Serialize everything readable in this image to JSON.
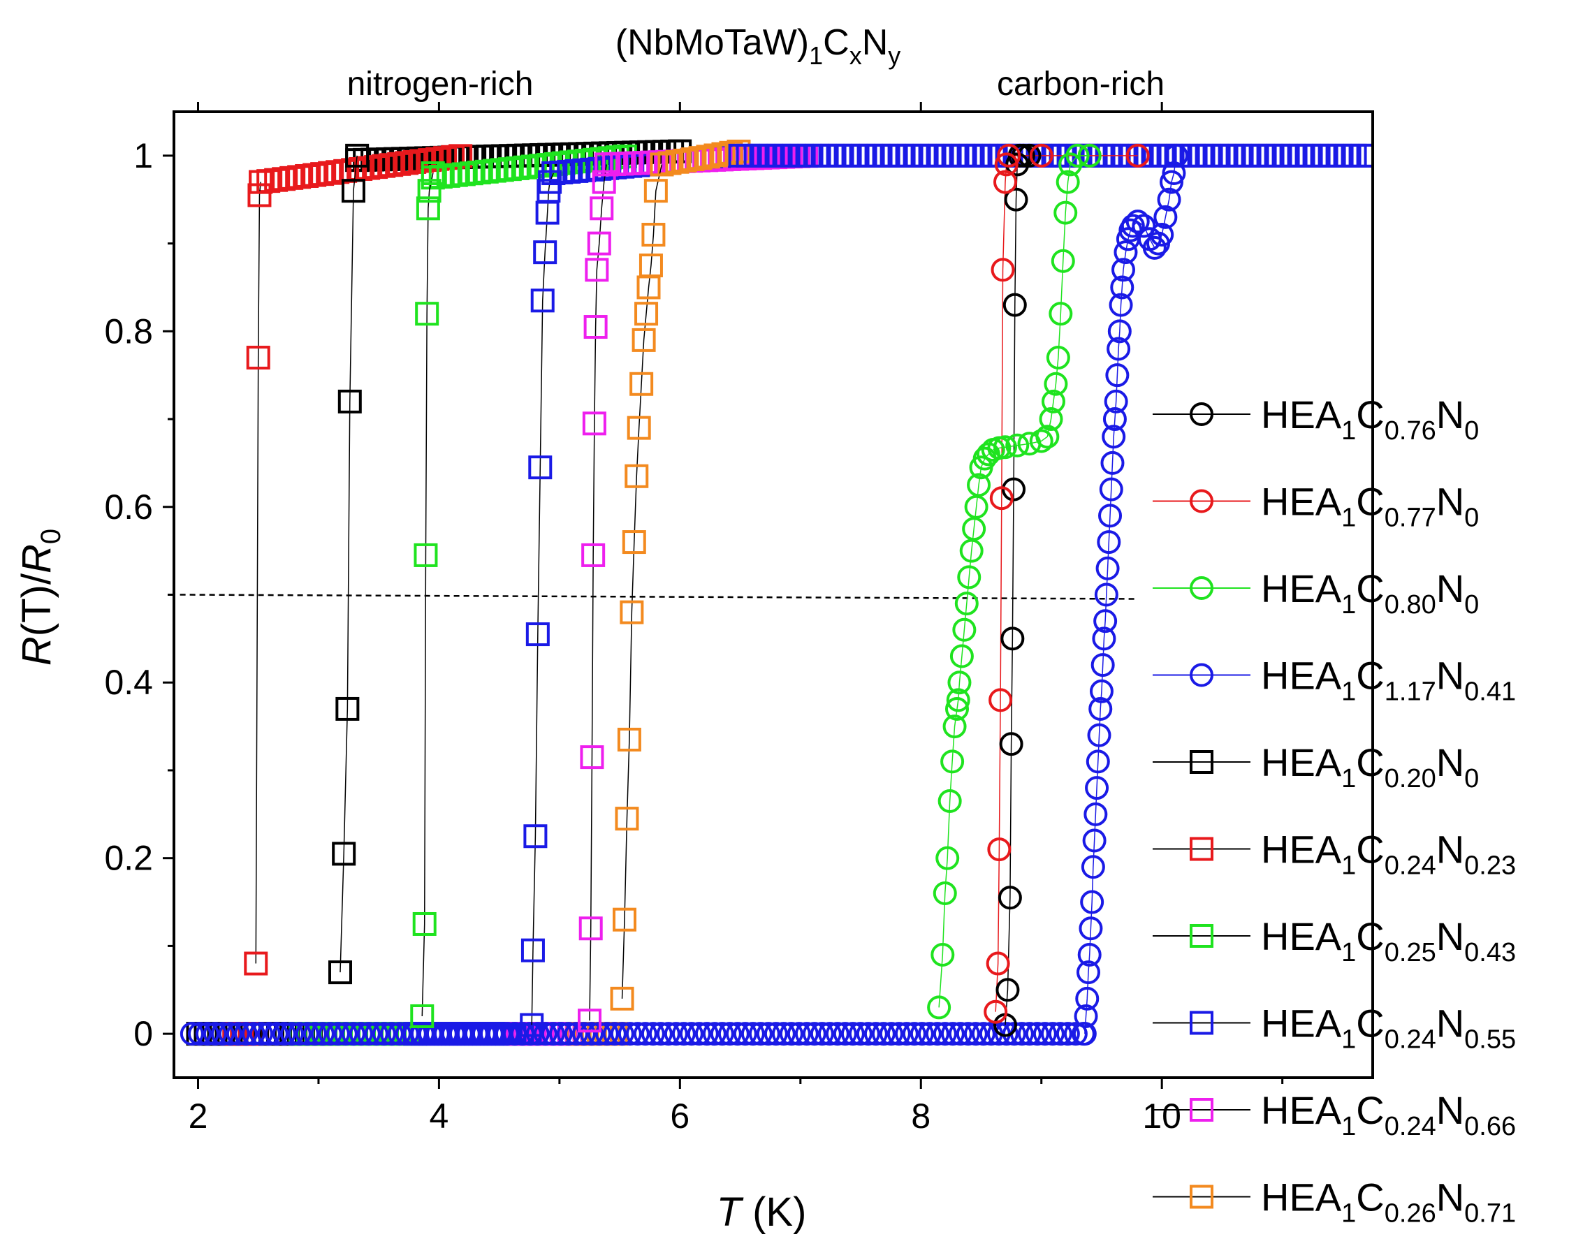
{
  "chart_data": {
    "type": "scatter",
    "title": {
      "base": "(NbMoTaW)",
      "s1": "1",
      "c": "C",
      "sx": "x",
      "n": "N",
      "sy": "y"
    },
    "annotations": {
      "left": "nitrogen-rich",
      "right": "carbon-rich"
    },
    "xlabel": {
      "var": "T",
      "unit": " (K)"
    },
    "ylabel": {
      "var1": "R",
      "mid": "(T)/",
      "var2": "R",
      "sub": "0"
    },
    "xlim": [
      1.8,
      11.75
    ],
    "ylim": [
      -0.05,
      1.05
    ],
    "xticks": [
      2,
      4,
      6,
      8,
      10
    ],
    "yticks": [
      0,
      0.2,
      0.4,
      0.6,
      0.8,
      1
    ],
    "ytick_labels": [
      "0",
      "0.2",
      "0.4",
      "0.6",
      "0.8",
      "1"
    ],
    "reference_line": {
      "y": 0.5,
      "style": "dashed",
      "x_start": 1.85,
      "x_end": 9.8
    },
    "series": [
      {
        "name": "HEA1C0.76N0",
        "label": {
          "c": "0.76",
          "n": "0"
        },
        "marker": "circle",
        "color": "#000000",
        "x": [
          8.7,
          8.72,
          8.74,
          8.75,
          8.76,
          8.77,
          8.78,
          8.79,
          8.8,
          8.82,
          8.85,
          8.9
        ],
        "y": [
          0.01,
          0.05,
          0.155,
          0.33,
          0.45,
          0.62,
          0.83,
          0.95,
          0.99,
          1.0,
          1.0,
          1.0
        ]
      },
      {
        "name": "HEA1C0.77N0",
        "label": {
          "c": "0.77",
          "n": "0"
        },
        "marker": "circle",
        "color": "#e8191c",
        "x": [
          8.62,
          8.64,
          8.65,
          8.66,
          8.67,
          8.68,
          8.7,
          8.71,
          8.73,
          9.0,
          9.4,
          9.8
        ],
        "y": [
          0.025,
          0.08,
          0.21,
          0.38,
          0.61,
          0.87,
          0.97,
          0.99,
          1.0,
          1.0,
          1.0,
          1.0
        ]
      },
      {
        "name": "HEA1C0.80N0",
        "label": {
          "c": "0.80",
          "n": "0"
        },
        "marker": "circle",
        "color": "#1fe31f",
        "x": [
          8.15,
          8.18,
          8.2,
          8.22,
          8.24,
          8.26,
          8.28,
          8.3,
          8.31,
          8.32,
          8.34,
          8.36,
          8.38,
          8.4,
          8.42,
          8.44,
          8.46,
          8.48,
          8.5,
          8.53,
          8.56,
          8.6,
          8.65,
          8.7,
          8.8,
          8.9,
          9.0,
          9.05,
          9.08,
          9.1,
          9.12,
          9.14,
          9.16,
          9.18,
          9.2,
          9.22,
          9.24,
          9.3,
          9.4
        ],
        "y": [
          0.03,
          0.09,
          0.16,
          0.2,
          0.265,
          0.31,
          0.35,
          0.37,
          0.38,
          0.4,
          0.43,
          0.46,
          0.49,
          0.52,
          0.55,
          0.575,
          0.6,
          0.625,
          0.645,
          0.655,
          0.66,
          0.665,
          0.667,
          0.668,
          0.67,
          0.672,
          0.675,
          0.68,
          0.7,
          0.72,
          0.74,
          0.77,
          0.82,
          0.88,
          0.935,
          0.97,
          0.99,
          1.0,
          1.0
        ]
      },
      {
        "name": "HEA1C1.17N0.41",
        "label": {
          "c": "1.17",
          "n": "0.41"
        },
        "marker": "circle",
        "color": "#1a1ae6",
        "x": [
          9.36,
          9.37,
          9.38,
          9.39,
          9.4,
          9.41,
          9.42,
          9.43,
          9.44,
          9.45,
          9.46,
          9.47,
          9.48,
          9.49,
          9.5,
          9.51,
          9.52,
          9.53,
          9.54,
          9.55,
          9.56,
          9.57,
          9.58,
          9.59,
          9.6,
          9.61,
          9.62,
          9.63,
          9.64,
          9.65,
          9.66,
          9.67,
          9.68,
          9.7,
          9.72,
          9.74,
          9.76,
          9.8,
          9.85,
          9.9,
          9.94,
          9.97,
          10.0,
          10.03,
          10.06,
          10.08,
          10.1,
          10.12
        ],
        "y": [
          0.0,
          0.02,
          0.04,
          0.07,
          0.09,
          0.12,
          0.15,
          0.19,
          0.22,
          0.25,
          0.28,
          0.31,
          0.34,
          0.37,
          0.39,
          0.42,
          0.45,
          0.47,
          0.5,
          0.53,
          0.56,
          0.59,
          0.62,
          0.65,
          0.68,
          0.7,
          0.72,
          0.75,
          0.78,
          0.8,
          0.83,
          0.85,
          0.87,
          0.89,
          0.905,
          0.915,
          0.92,
          0.925,
          0.92,
          0.905,
          0.895,
          0.9,
          0.91,
          0.93,
          0.95,
          0.97,
          0.98,
          1.0
        ]
      },
      {
        "name": "HEA1C0.20N0",
        "label": {
          "c": "0.20",
          "n": "0"
        },
        "marker": "square",
        "color": "#000000",
        "x": [
          3.18,
          3.21,
          3.24,
          3.26,
          3.29,
          3.32
        ],
        "y": [
          0.07,
          0.205,
          0.37,
          0.72,
          0.96,
          1.0
        ]
      },
      {
        "name": "HEA1C0.24N0.23",
        "label": {
          "c": "0.24",
          "n": "0.23"
        },
        "marker": "square",
        "color": "#e8191c",
        "x": [
          2.48,
          2.5,
          2.51,
          2.52
        ],
        "y": [
          0.08,
          0.77,
          0.955,
          0.97
        ]
      },
      {
        "name": "HEA1C0.25N0.43",
        "label": {
          "c": "0.25",
          "n": "0.43"
        },
        "marker": "square",
        "color": "#1fe31f",
        "x": [
          3.86,
          3.88,
          3.89,
          3.9,
          3.91,
          3.92,
          3.95
        ],
        "y": [
          0.02,
          0.125,
          0.545,
          0.82,
          0.94,
          0.96,
          0.98
        ]
      },
      {
        "name": "HEA1C0.24N0.55",
        "label": {
          "c": "0.24",
          "n": "0.55"
        },
        "marker": "square",
        "color": "#1a1ae6",
        "x": [
          4.77,
          4.78,
          4.8,
          4.82,
          4.84,
          4.86,
          4.88,
          4.9,
          4.91,
          4.92,
          4.95
        ],
        "y": [
          0.01,
          0.095,
          0.225,
          0.455,
          0.645,
          0.835,
          0.89,
          0.935,
          0.96,
          0.97,
          0.98
        ]
      },
      {
        "name": "HEA1C0.24N0.66",
        "label": {
          "c": "0.24",
          "n": "0.66"
        },
        "marker": "square",
        "color": "#ee1fee",
        "x": [
          5.25,
          5.26,
          5.27,
          5.28,
          5.29,
          5.3,
          5.31,
          5.33,
          5.35,
          5.37,
          5.39
        ],
        "y": [
          0.015,
          0.12,
          0.315,
          0.545,
          0.695,
          0.805,
          0.87,
          0.9,
          0.94,
          0.97,
          0.99
        ]
      },
      {
        "name": "HEA1C0.26N0.71",
        "label": {
          "c": "0.26",
          "n": "0.71"
        },
        "marker": "square",
        "color": "#f38a1f",
        "x": [
          5.52,
          5.54,
          5.56,
          5.58,
          5.6,
          5.62,
          5.64,
          5.66,
          5.68,
          5.7,
          5.72,
          5.74,
          5.76,
          5.78,
          5.8,
          5.85
        ],
        "y": [
          0.04,
          0.13,
          0.245,
          0.335,
          0.48,
          0.56,
          0.635,
          0.69,
          0.74,
          0.79,
          0.82,
          0.85,
          0.875,
          0.91,
          0.96,
          0.99
        ]
      }
    ],
    "baseline_ranges": [
      {
        "color": "#000000",
        "marker": "square",
        "x0": 2.0,
        "x1": 2.45
      },
      {
        "color": "#e8191c",
        "marker": "square",
        "x0": 2.3,
        "x1": 2.5
      },
      {
        "color": "#000000",
        "marker": "square",
        "x0": 2.6,
        "x1": 3.15
      },
      {
        "color": "#1fe31f",
        "marker": "square",
        "x0": 2.85,
        "x1": 3.85
      },
      {
        "color": "#1a1ae6",
        "marker": "square",
        "x0": 3.8,
        "x1": 4.77
      },
      {
        "color": "#ee1fee",
        "marker": "square",
        "x0": 4.65,
        "x1": 5.25
      },
      {
        "color": "#f38a1f",
        "marker": "square",
        "x0": 5.15,
        "x1": 5.52
      },
      {
        "color": "#1a1ae6",
        "marker": "circle",
        "x0": 1.95,
        "x1": 9.36
      }
    ],
    "plateau_ranges": [
      {
        "color": "#000000",
        "marker": "square",
        "x0": 3.32,
        "x1": 6.0,
        "y0": 0.995,
        "y1": 1.005
      },
      {
        "color": "#e8191c",
        "marker": "square",
        "x0": 2.52,
        "x1": 4.2,
        "y0": 0.97,
        "y1": 1.0
      },
      {
        "color": "#1fe31f",
        "marker": "square",
        "x0": 3.95,
        "x1": 5.6,
        "y0": 0.975,
        "y1": 1.0
      },
      {
        "color": "#1a1ae6",
        "marker": "square",
        "x0": 4.95,
        "x1": 6.5,
        "y0": 0.98,
        "y1": 1.0
      },
      {
        "color": "#ee1fee",
        "marker": "square",
        "x0": 5.39,
        "x1": 7.1,
        "y0": 0.99,
        "y1": 1.0
      },
      {
        "color": "#f38a1f",
        "marker": "square",
        "x0": 5.85,
        "x1": 6.5,
        "y0": 0.99,
        "y1": 1.005
      },
      {
        "color": "#1a1ae6",
        "marker": "square",
        "x0": 6.5,
        "x1": 11.75,
        "y0": 1.0,
        "y1": 1.0
      }
    ]
  }
}
